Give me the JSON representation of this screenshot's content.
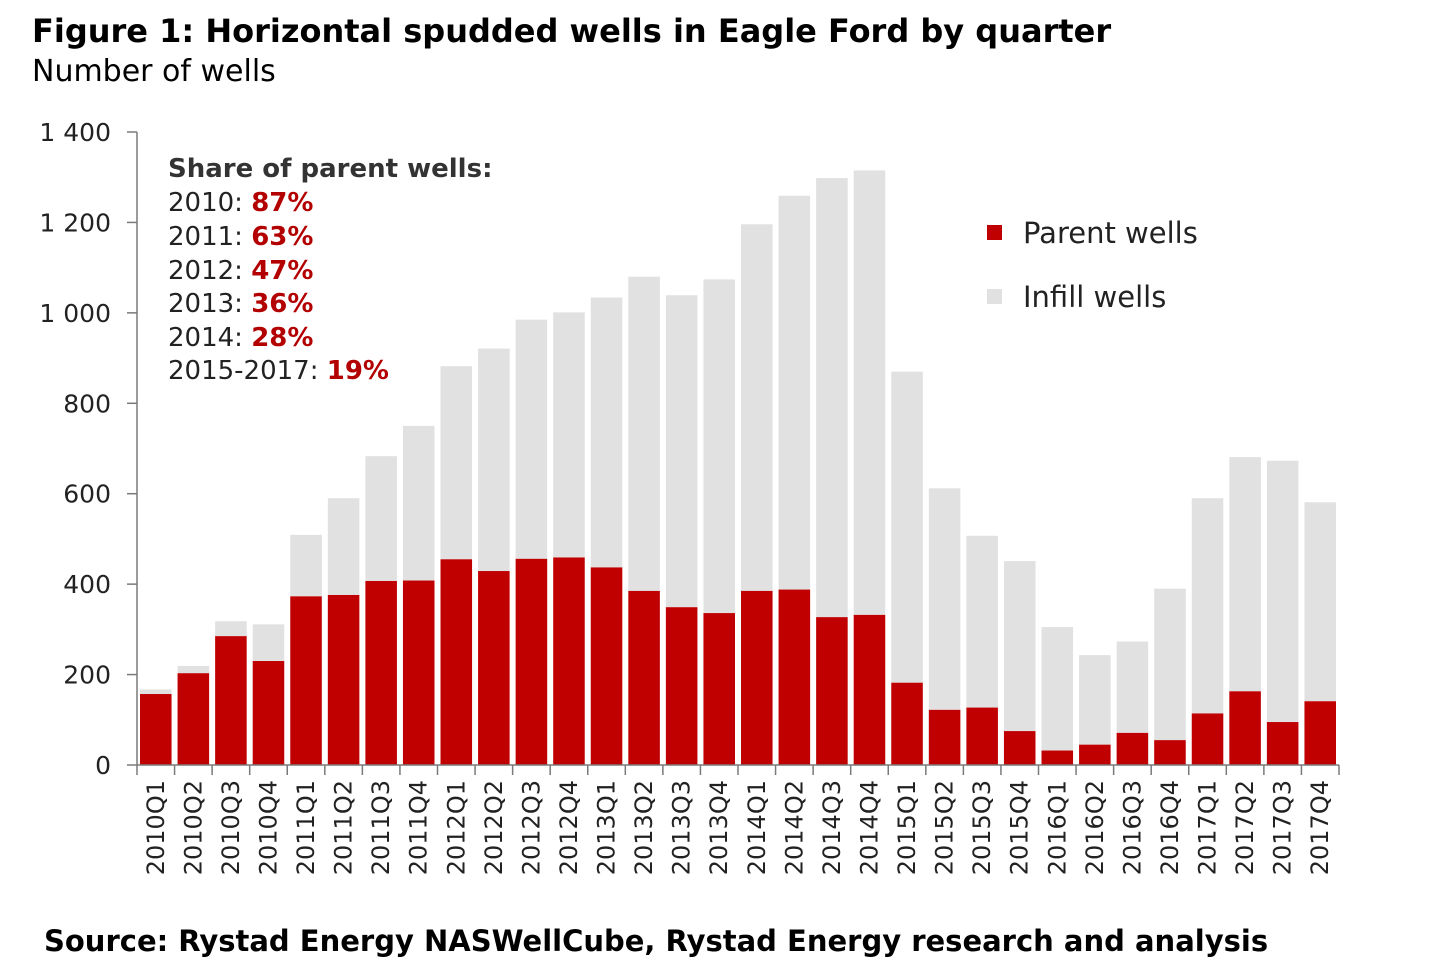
{
  "header": {
    "title": "Figure 1: Horizontal spudded wells in Eagle Ford by quarter",
    "subtitle": "Number of wells"
  },
  "footer": {
    "source": "Source: Rystad Energy NASWellCube, Rystad Energy research and analysis"
  },
  "colors": {
    "parent": "#c00000",
    "infill": "#e1e1e1",
    "annotation_value": "#b30000"
  },
  "annotation": {
    "heading": "Share of parent wells:",
    "rows": [
      {
        "label": "2010: ",
        "value": "87%"
      },
      {
        "label": "2011: ",
        "value": "63%"
      },
      {
        "label": "2012: ",
        "value": "47%"
      },
      {
        "label": "2013: ",
        "value": "36%"
      },
      {
        "label": "2014: ",
        "value": "28%"
      },
      {
        "label": "2015-2017: ",
        "value": "19%"
      }
    ]
  },
  "chart_data": {
    "type": "bar",
    "stacked": true,
    "title": "Figure 1: Horizontal spudded wells in Eagle Ford by quarter",
    "ylabel": "Number of wells",
    "xlabel": "",
    "ylim": [
      0,
      1400
    ],
    "yticks": [
      0,
      200,
      400,
      600,
      800,
      1000,
      1200,
      1400
    ],
    "ytick_labels": [
      "0",
      "200",
      "400",
      "600",
      "800",
      "1 000",
      "1 200",
      "1 400"
    ],
    "legend_position": "top-right",
    "categories": [
      "2010Q1",
      "2010Q2",
      "2010Q3",
      "2010Q4",
      "2011Q1",
      "2011Q2",
      "2011Q3",
      "2011Q4",
      "2012Q1",
      "2012Q2",
      "2012Q3",
      "2012Q4",
      "2013Q1",
      "2013Q2",
      "2013Q3",
      "2013Q4",
      "2014Q1",
      "2014Q2",
      "2014Q3",
      "2014Q4",
      "2015Q1",
      "2015Q2",
      "2015Q3",
      "2015Q4",
      "2016Q1",
      "2016Q2",
      "2016Q3",
      "2016Q4",
      "2017Q1",
      "2017Q2",
      "2017Q3",
      "2017Q4"
    ],
    "series": [
      {
        "name": "Parent wells",
        "values": [
          157,
          203,
          285,
          230,
          373,
          376,
          407,
          408,
          455,
          429,
          456,
          459,
          437,
          385,
          349,
          336,
          385,
          388,
          327,
          332,
          182,
          122,
          127,
          75,
          32,
          45,
          71,
          55,
          114,
          163,
          95,
          141
        ]
      },
      {
        "name": "Infill wells",
        "values": [
          10,
          16,
          33,
          81,
          136,
          214,
          276,
          342,
          427,
          492,
          529,
          542,
          597,
          695,
          690,
          738,
          811,
          871,
          971,
          983,
          688,
          490,
          380,
          376,
          273,
          198,
          202,
          335,
          476,
          518,
          578,
          440
        ]
      }
    ]
  }
}
